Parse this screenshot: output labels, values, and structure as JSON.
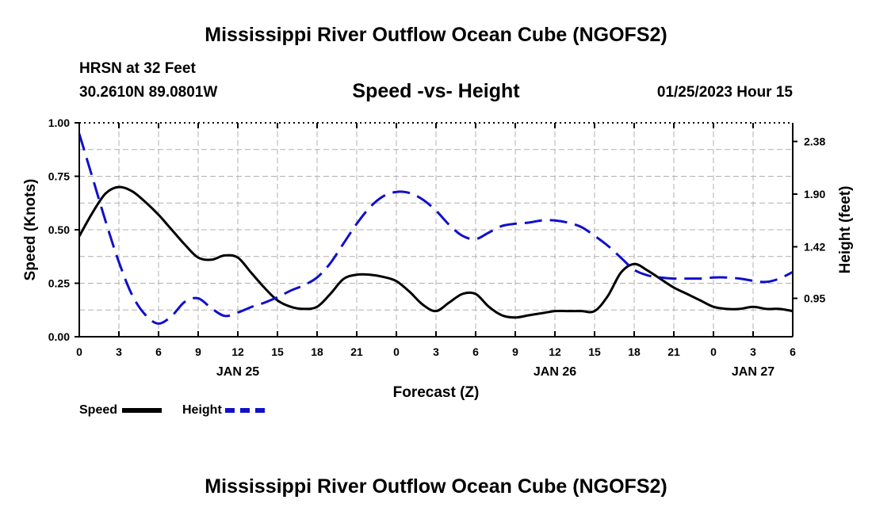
{
  "title": "Mississippi River Outflow Ocean Cube (NGOFS2)",
  "footer_title": "Mississippi River Outflow Ocean Cube (NGOFS2)",
  "station": "HRSN at 32 Feet",
  "coordinates": "30.2610N  89.0801W",
  "subtitle": "Speed -vs- Height",
  "datetime": "01/25/2023 Hour 15",
  "colors": {
    "speed": "#000000",
    "height": "#1010cc",
    "grid": "#b0b0b0"
  },
  "chart_data": {
    "type": "line",
    "title": "Speed -vs- Height",
    "xlabel": "Forecast (Z)",
    "ylabel": "Speed (Knots)",
    "y2label": "Height (feet)",
    "xlim": [
      0,
      54
    ],
    "ylim": [
      0,
      1.0
    ],
    "y2lim": [
      0.6,
      2.55
    ],
    "x_tick_labels": [
      "0",
      "3",
      "6",
      "9",
      "12",
      "15",
      "18",
      "21",
      "0",
      "3",
      "6",
      "9",
      "12",
      "15",
      "18",
      "21",
      "0",
      "3",
      "6"
    ],
    "date_labels": [
      {
        "hour": 12,
        "label": "JAN 25"
      },
      {
        "hour": 36,
        "label": "JAN 26"
      },
      {
        "hour": 51,
        "label": "JAN 27"
      }
    ],
    "y_ticks": [
      "0.00",
      "0.25",
      "0.50",
      "0.75",
      "1.00"
    ],
    "y2_ticks": [
      "0.95",
      "1.42",
      "1.90",
      "2.38"
    ],
    "legend": [
      "Speed",
      "Height"
    ],
    "series": [
      {
        "name": "Speed",
        "axis": "left",
        "style": "solid",
        "x": [
          0,
          1,
          2,
          3,
          4,
          5,
          6,
          7,
          8,
          9,
          10,
          11,
          12,
          13,
          14,
          15,
          16,
          17,
          18,
          19,
          20,
          21,
          22,
          23,
          24,
          25,
          26,
          27,
          28,
          29,
          30,
          31,
          32,
          33,
          34,
          35,
          36,
          37,
          38,
          39,
          40,
          41,
          42,
          43,
          44,
          45,
          46,
          47,
          48,
          49,
          50,
          51,
          52,
          53,
          54
        ],
        "values": [
          0.47,
          0.58,
          0.67,
          0.7,
          0.68,
          0.63,
          0.57,
          0.5,
          0.43,
          0.37,
          0.36,
          0.38,
          0.37,
          0.3,
          0.23,
          0.17,
          0.14,
          0.13,
          0.14,
          0.2,
          0.27,
          0.29,
          0.29,
          0.28,
          0.26,
          0.21,
          0.15,
          0.12,
          0.16,
          0.2,
          0.2,
          0.14,
          0.1,
          0.09,
          0.1,
          0.11,
          0.12,
          0.12,
          0.12,
          0.12,
          0.19,
          0.3,
          0.34,
          0.31,
          0.27,
          0.23,
          0.2,
          0.17,
          0.14,
          0.13,
          0.13,
          0.14,
          0.13,
          0.13,
          0.12
        ]
      },
      {
        "name": "Height",
        "axis": "right",
        "style": "dashed",
        "x": [
          0,
          1,
          2,
          3,
          4,
          5,
          6,
          7,
          8,
          9,
          10,
          11,
          12,
          13,
          14,
          15,
          16,
          17,
          18,
          19,
          20,
          21,
          22,
          23,
          24,
          25,
          26,
          27,
          28,
          29,
          30,
          31,
          32,
          33,
          34,
          35,
          36,
          37,
          38,
          39,
          40,
          41,
          42,
          43,
          44,
          45,
          46,
          47,
          48,
          49,
          50,
          51,
          52,
          53,
          54
        ],
        "values": [
          2.45,
          2.05,
          1.65,
          1.28,
          0.98,
          0.8,
          0.72,
          0.79,
          0.92,
          0.95,
          0.86,
          0.79,
          0.82,
          0.87,
          0.91,
          0.96,
          1.02,
          1.07,
          1.14,
          1.27,
          1.45,
          1.63,
          1.78,
          1.88,
          1.92,
          1.91,
          1.85,
          1.75,
          1.62,
          1.52,
          1.49,
          1.55,
          1.61,
          1.63,
          1.64,
          1.66,
          1.66,
          1.64,
          1.6,
          1.52,
          1.43,
          1.32,
          1.21,
          1.16,
          1.14,
          1.13,
          1.13,
          1.13,
          1.14,
          1.14,
          1.13,
          1.11,
          1.1,
          1.13,
          1.19
        ]
      }
    ]
  }
}
